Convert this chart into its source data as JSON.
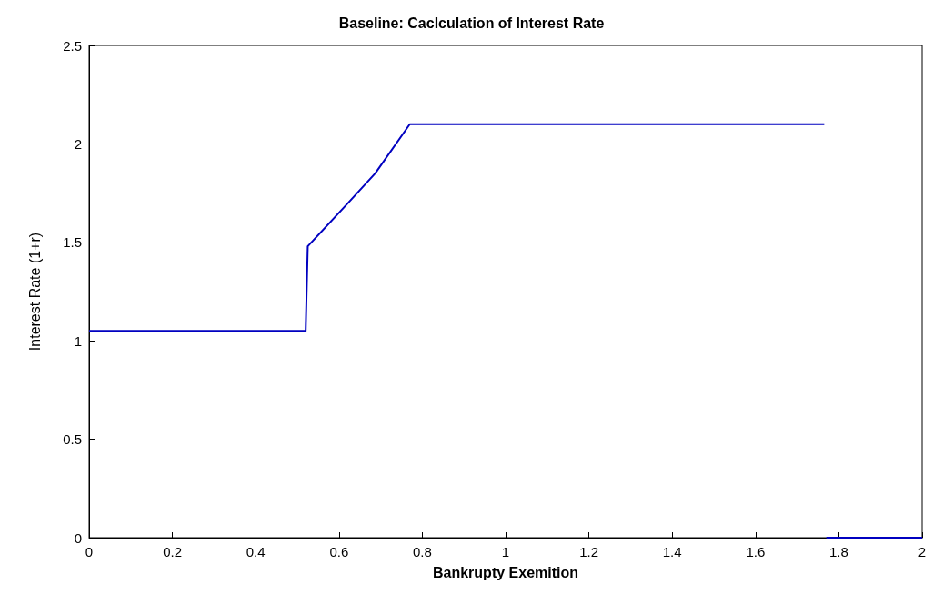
{
  "chart_data": {
    "type": "line",
    "title": "Baseline: Caclculation of Interest Rate",
    "xlabel": "Bankrupty Exemition",
    "ylabel": "Interest Rate (1+r)",
    "x": [
      0,
      0.52,
      0.525,
      0.622,
      0.687,
      0.77,
      1.765,
      1.767,
      1.77,
      2
    ],
    "series": [
      {
        "color": "#0000c0",
        "values": [
          1.05,
          1.05,
          1.48,
          1.7,
          1.85,
          2.1,
          2.1,
          null,
          0,
          0
        ]
      }
    ],
    "xlim": [
      0,
      2
    ],
    "xticks": [
      0,
      0.2,
      0.4,
      0.6,
      0.8,
      1,
      1.2,
      1.4,
      1.6,
      1.8,
      2
    ],
    "ylim": [
      0,
      2.5
    ],
    "yticks": [
      0,
      0.5,
      1,
      1.5,
      2,
      2.5
    ],
    "grid": false,
    "marker": "none",
    "line_style": "solid"
  }
}
